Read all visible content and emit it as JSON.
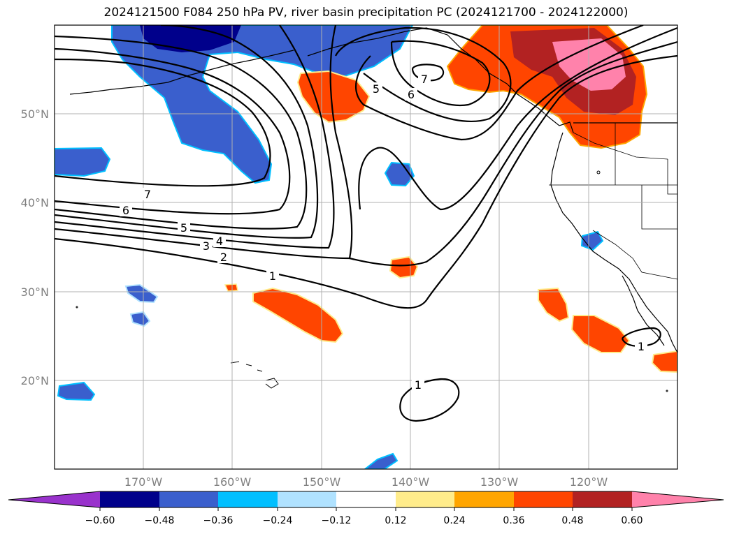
{
  "title": "2024121500 F084 250 hPa PV, river basin precipitation PC (2024121700 - 2024122000)",
  "lat_labels": [
    "50°N",
    "40°N",
    "30°N",
    "20°N"
  ],
  "lon_labels": [
    "170°W",
    "160°W",
    "150°W",
    "140°W",
    "130°W",
    "120°W"
  ],
  "colorbar": {
    "colors": [
      "#9932cc",
      "#00008b",
      "#3a5fcd",
      "#00bfff",
      "#b0e2ff",
      "#ffffff",
      "#ffec8b",
      "#ffa500",
      "#ff4500",
      "#b22222",
      "#ff82ab"
    ],
    "ticks": [
      "−0.60",
      "−0.48",
      "−0.36",
      "−0.24",
      "−0.12",
      "0.12",
      "0.24",
      "0.36",
      "0.48",
      "0.60"
    ]
  },
  "contour_labels": [
    "7",
    "6",
    "5",
    "4",
    "3",
    "2",
    "1",
    "5",
    "6",
    "7",
    "1",
    "1"
  ]
}
